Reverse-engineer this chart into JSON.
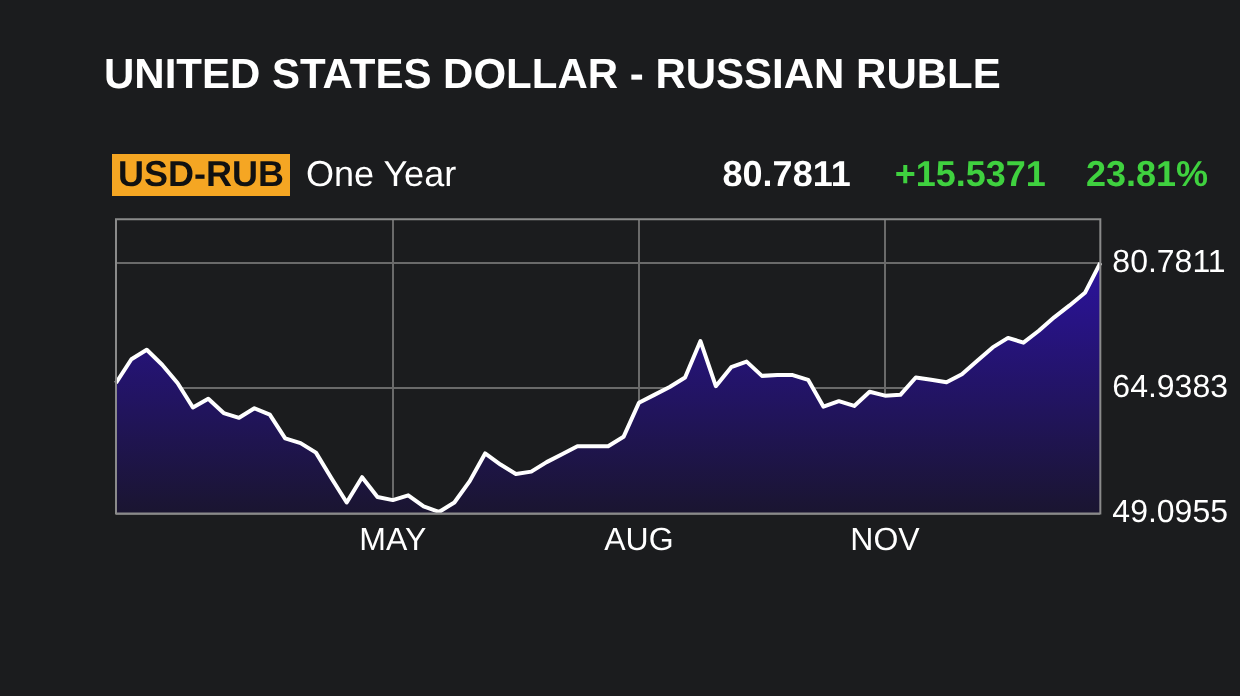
{
  "chart_data": {
    "type": "area",
    "title": "UNITED STATES DOLLAR - RUSSIAN RUBLE",
    "annotations": [
      "USD-RUB",
      "One Year",
      "80.7811",
      "+15.5371",
      "23.81%"
    ],
    "categories": [
      null,
      null,
      null,
      null,
      null,
      null,
      null,
      null,
      null,
      null,
      null,
      null,
      null,
      null,
      null,
      null,
      null,
      null,
      "MAY",
      null,
      null,
      null,
      null,
      null,
      null,
      null,
      null,
      null,
      null,
      null,
      null,
      null,
      null,
      null,
      "AUG",
      null,
      null,
      null,
      null,
      null,
      null,
      null,
      null,
      null,
      null,
      null,
      null,
      null,
      null,
      null,
      "NOV",
      null,
      null,
      null,
      null,
      null,
      null,
      null,
      null,
      null,
      null,
      null,
      null,
      null,
      null
    ],
    "series": [
      {
        "color": "#2e12b0",
        "values": [
          65.6,
          68.6,
          69.8,
          67.9,
          65.6,
          62.5,
          63.6,
          61.8,
          61.2,
          62.4,
          61.6,
          58.6,
          58.0,
          56.8,
          53.6,
          50.5,
          53.7,
          51.2,
          50.8,
          51.4,
          50.0,
          49.3,
          50.5,
          53.2,
          56.7,
          55.3,
          54.1,
          54.4,
          55.6,
          56.6,
          57.6,
          57.6,
          57.6,
          58.8,
          63.1,
          64.1,
          65.1,
          66.3,
          70.9,
          65.2,
          67.6,
          68.3,
          66.5,
          66.6,
          66.6,
          66.0,
          62.6,
          63.3,
          62.7,
          64.5,
          64.0,
          64.1,
          66.3,
          66.0,
          65.7,
          66.7,
          68.4,
          70.1,
          71.3,
          70.7,
          72.2,
          73.9,
          75.4,
          77.0,
          80.78
        ]
      }
    ],
    "ylim": [
      49.0955,
      86.3
    ],
    "yticks": [
      49.0955,
      64.9383,
      80.7811
    ],
    "grid": true,
    "legend": false,
    "marker": "none"
  }
}
